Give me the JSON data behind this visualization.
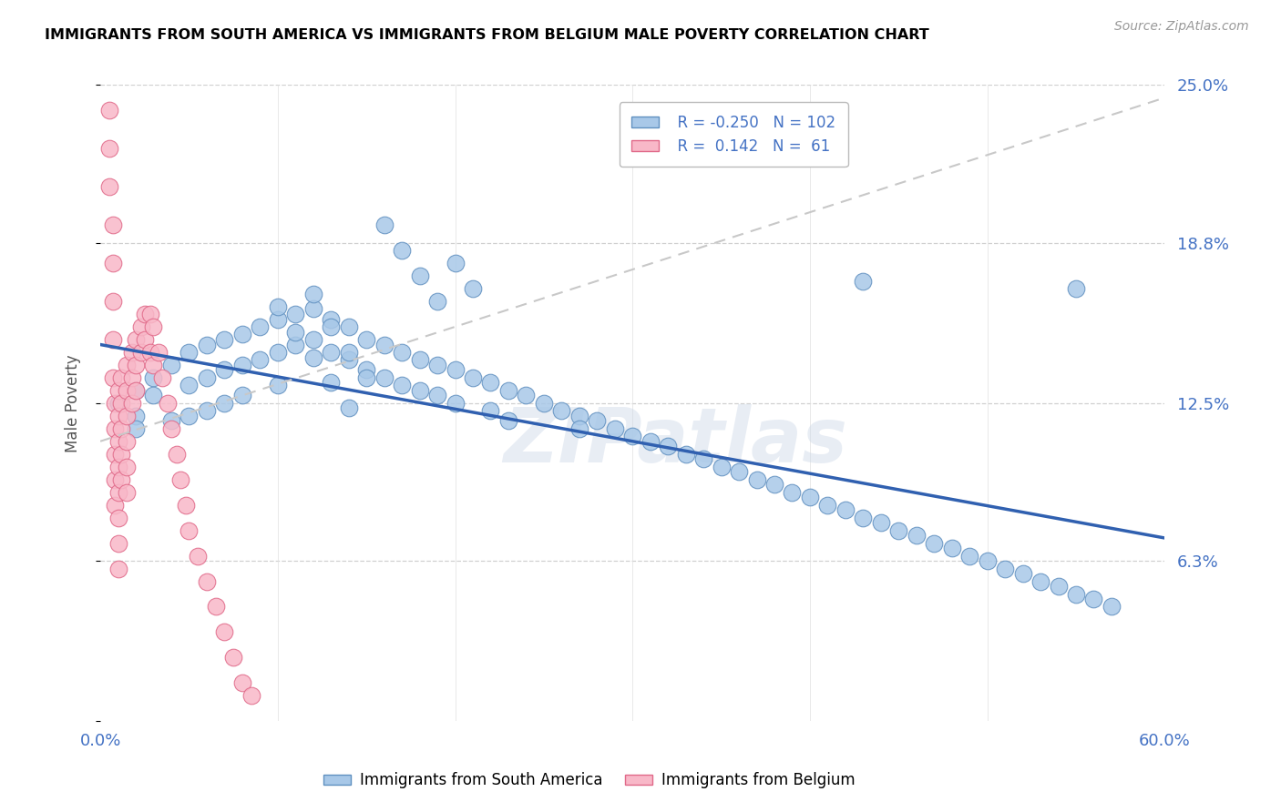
{
  "title": "IMMIGRANTS FROM SOUTH AMERICA VS IMMIGRANTS FROM BELGIUM MALE POVERTY CORRELATION CHART",
  "source": "Source: ZipAtlas.com",
  "ylabel": "Male Poverty",
  "xmin": 0.0,
  "xmax": 0.6,
  "ymin": 0.0,
  "ymax": 0.25,
  "yticks": [
    0.0,
    0.063,
    0.125,
    0.188,
    0.25
  ],
  "ytick_labels": [
    "",
    "6.3%",
    "12.5%",
    "18.8%",
    "25.0%"
  ],
  "xticks": [
    0.0,
    0.1,
    0.2,
    0.3,
    0.4,
    0.5,
    0.6
  ],
  "xtick_labels": [
    "0.0%",
    "",
    "",
    "",
    "",
    "",
    "60.0%"
  ],
  "south_america_color": "#a8c8e8",
  "south_america_edge": "#6090c0",
  "belgium_color": "#f8b8c8",
  "belgium_edge": "#e06888",
  "trend_sa_color": "#3060b0",
  "trend_be_color": "#c8c8c8",
  "watermark": "ZIPatlas",
  "R_sa": -0.25,
  "N_sa": 102,
  "R_be": 0.142,
  "N_be": 61,
  "sa_x": [
    0.01,
    0.02,
    0.02,
    0.02,
    0.03,
    0.03,
    0.04,
    0.04,
    0.05,
    0.05,
    0.05,
    0.06,
    0.06,
    0.06,
    0.07,
    0.07,
    0.07,
    0.08,
    0.08,
    0.08,
    0.09,
    0.09,
    0.1,
    0.1,
    0.1,
    0.11,
    0.11,
    0.12,
    0.12,
    0.13,
    0.13,
    0.14,
    0.14,
    0.15,
    0.15,
    0.16,
    0.16,
    0.17,
    0.17,
    0.18,
    0.18,
    0.19,
    0.19,
    0.2,
    0.2,
    0.21,
    0.22,
    0.22,
    0.23,
    0.23,
    0.24,
    0.25,
    0.26,
    0.27,
    0.27,
    0.28,
    0.29,
    0.3,
    0.31,
    0.32,
    0.33,
    0.34,
    0.35,
    0.36,
    0.37,
    0.38,
    0.39,
    0.4,
    0.41,
    0.42,
    0.43,
    0.44,
    0.45,
    0.46,
    0.47,
    0.48,
    0.49,
    0.5,
    0.51,
    0.52,
    0.53,
    0.54,
    0.55,
    0.56,
    0.57,
    0.43,
    0.55,
    0.16,
    0.17,
    0.18,
    0.19,
    0.2,
    0.21,
    0.12,
    0.13,
    0.14,
    0.15,
    0.1,
    0.11,
    0.12,
    0.13,
    0.14
  ],
  "sa_y": [
    0.125,
    0.13,
    0.12,
    0.115,
    0.135,
    0.128,
    0.14,
    0.118,
    0.145,
    0.132,
    0.12,
    0.148,
    0.135,
    0.122,
    0.15,
    0.138,
    0.125,
    0.152,
    0.14,
    0.128,
    0.155,
    0.142,
    0.158,
    0.145,
    0.132,
    0.16,
    0.148,
    0.162,
    0.15,
    0.158,
    0.145,
    0.155,
    0.142,
    0.15,
    0.138,
    0.148,
    0.135,
    0.145,
    0.132,
    0.142,
    0.13,
    0.14,
    0.128,
    0.138,
    0.125,
    0.135,
    0.133,
    0.122,
    0.13,
    0.118,
    0.128,
    0.125,
    0.122,
    0.12,
    0.115,
    0.118,
    0.115,
    0.112,
    0.11,
    0.108,
    0.105,
    0.103,
    0.1,
    0.098,
    0.095,
    0.093,
    0.09,
    0.088,
    0.085,
    0.083,
    0.08,
    0.078,
    0.075,
    0.073,
    0.07,
    0.068,
    0.065,
    0.063,
    0.06,
    0.058,
    0.055,
    0.053,
    0.05,
    0.048,
    0.045,
    0.173,
    0.17,
    0.195,
    0.185,
    0.175,
    0.165,
    0.18,
    0.17,
    0.168,
    0.155,
    0.145,
    0.135,
    0.163,
    0.153,
    0.143,
    0.133,
    0.123
  ],
  "be_x": [
    0.005,
    0.005,
    0.005,
    0.007,
    0.007,
    0.007,
    0.007,
    0.007,
    0.008,
    0.008,
    0.008,
    0.008,
    0.008,
    0.01,
    0.01,
    0.01,
    0.01,
    0.01,
    0.01,
    0.01,
    0.01,
    0.012,
    0.012,
    0.012,
    0.012,
    0.012,
    0.015,
    0.015,
    0.015,
    0.015,
    0.015,
    0.015,
    0.018,
    0.018,
    0.018,
    0.02,
    0.02,
    0.02,
    0.023,
    0.023,
    0.025,
    0.025,
    0.028,
    0.028,
    0.03,
    0.03,
    0.033,
    0.035,
    0.038,
    0.04,
    0.043,
    0.045,
    0.048,
    0.05,
    0.055,
    0.06,
    0.065,
    0.07,
    0.075,
    0.08,
    0.085
  ],
  "be_y": [
    0.24,
    0.225,
    0.21,
    0.195,
    0.18,
    0.165,
    0.15,
    0.135,
    0.125,
    0.115,
    0.105,
    0.095,
    0.085,
    0.13,
    0.12,
    0.11,
    0.1,
    0.09,
    0.08,
    0.07,
    0.06,
    0.135,
    0.125,
    0.115,
    0.105,
    0.095,
    0.14,
    0.13,
    0.12,
    0.11,
    0.1,
    0.09,
    0.145,
    0.135,
    0.125,
    0.15,
    0.14,
    0.13,
    0.155,
    0.145,
    0.16,
    0.15,
    0.16,
    0.145,
    0.155,
    0.14,
    0.145,
    0.135,
    0.125,
    0.115,
    0.105,
    0.095,
    0.085,
    0.075,
    0.065,
    0.055,
    0.045,
    0.035,
    0.025,
    0.015,
    0.01
  ],
  "sa_trend_x0": 0.0,
  "sa_trend_y0": 0.148,
  "sa_trend_x1": 0.6,
  "sa_trend_y1": 0.072,
  "be_trend_x0": 0.0,
  "be_trend_y0": 0.11,
  "be_trend_x1": 0.6,
  "be_trend_y1": 0.245
}
